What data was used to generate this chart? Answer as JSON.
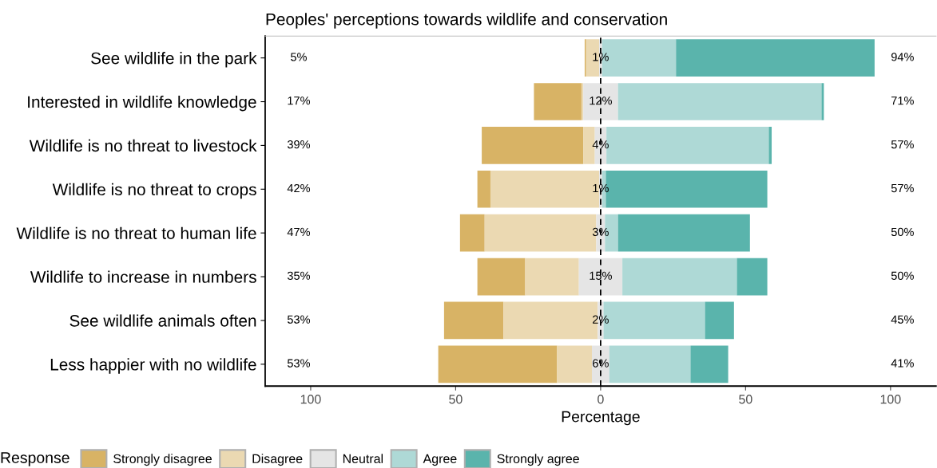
{
  "chart_data": {
    "type": "bar",
    "orientation": "horizontal",
    "title": "Peoples' perceptions towards wildlife and conservation",
    "xlabel": "Percentage",
    "legend_title": "Response",
    "legend": "bottom",
    "categories": [
      "See wildlife in the park",
      "Interested in wildlife knowledge",
      "Wildlife is no threat to livestock",
      "Wildlife is no threat to crops",
      "Wildlife is no threat to human life",
      "Wildlife to increase in numbers",
      "See wildlife animals often",
      "Less happier with no wildlife"
    ],
    "series": [
      {
        "name": "Strongly disagree",
        "color": "#d8b365",
        "base": [
          -5.5,
          -23,
          -41,
          -42.5,
          -48.5,
          -42.5,
          -54,
          -56
        ],
        "values": [
          0.5,
          16.4,
          35,
          4.5,
          8.5,
          16.5,
          20.5,
          41
        ]
      },
      {
        "name": "Disagree",
        "color": "#ebd9b2",
        "base": [
          -5,
          -6.6,
          -6,
          -38,
          -40,
          -26,
          -33.5,
          -15
        ],
        "values": [
          4.5,
          0.6,
          4,
          37.5,
          38.5,
          18.5,
          32.5,
          12
        ]
      },
      {
        "name": "Neutral",
        "color": "#e5e5e5",
        "base": [
          -0.5,
          -6,
          -2,
          -0.5,
          -1.5,
          -7.5,
          -1,
          -3
        ],
        "values": [
          1,
          12,
          4,
          1,
          3,
          15,
          2,
          6
        ],
        "value_labels": [
          "1%",
          "12%",
          "4%",
          "1%",
          "3%",
          "15%",
          "2%",
          "6%"
        ]
      },
      {
        "name": "Agree",
        "color": "#aed9d6",
        "base": [
          0.5,
          6,
          2,
          0.5,
          1.5,
          7.5,
          1,
          3
        ],
        "values": [
          25.5,
          70.2,
          56,
          1.3,
          4.5,
          39.5,
          35,
          28
        ]
      },
      {
        "name": "Strongly agree",
        "color": "#5ab4ac",
        "base": [
          26,
          76.2,
          58,
          1.8,
          6,
          47,
          36,
          31
        ],
        "values": [
          68.5,
          0.8,
          1,
          55.7,
          45.5,
          10.5,
          10,
          13
        ]
      }
    ],
    "xlim": [
      -115.7,
      115.7
    ],
    "xticks": [
      {
        "value": -100,
        "label": "100"
      },
      {
        "value": -50,
        "label": "50"
      },
      0,
      50,
      100
    ],
    "ref_lines": [
      {
        "axis": "x",
        "value": 0,
        "line_style": "dashed",
        "color": "#000000"
      }
    ],
    "annotations": [
      "5%",
      "17%",
      "39%",
      "42%",
      "47%",
      "35%",
      "53%",
      "53%",
      "94%",
      "71%",
      "57%",
      "57%",
      "50%",
      "50%",
      "45%",
      "41%"
    ]
  }
}
